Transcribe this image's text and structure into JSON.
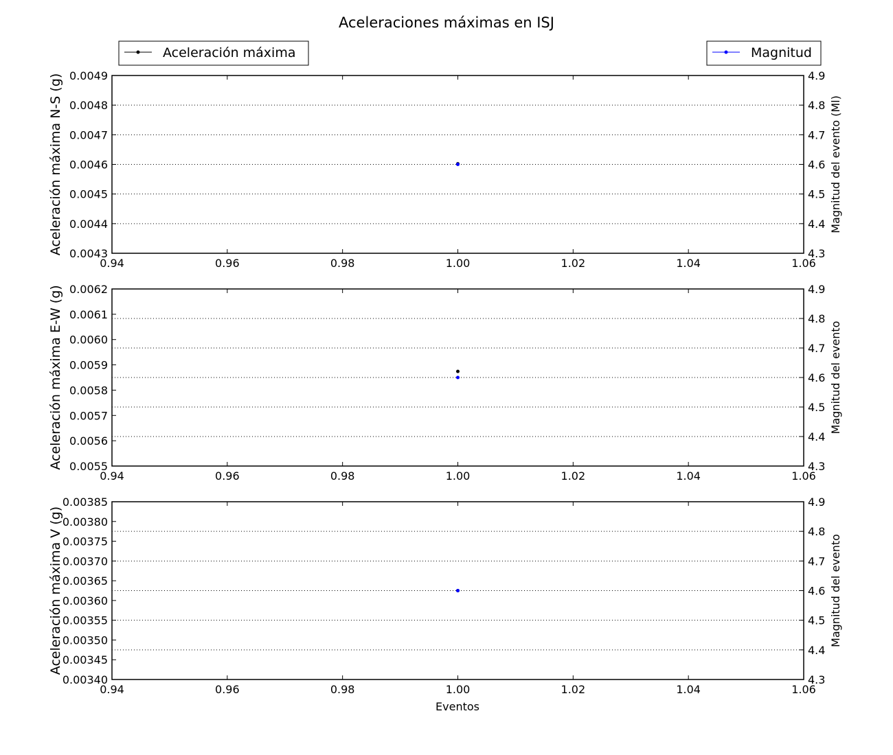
{
  "figure": {
    "title": "Aceleraciones máximas en ISJ",
    "xlabel": "Eventos"
  },
  "legend": {
    "left": {
      "label": "Aceleración máxima",
      "color": "#000000"
    },
    "right": {
      "label": "Magnitud",
      "color": "#0000ff"
    }
  },
  "colors": {
    "acceleration": "#000000",
    "magnitude": "#0000ff",
    "grid": "#000000"
  },
  "chart_data": [
    {
      "type": "scatter",
      "x": [
        1.0
      ],
      "xlim": [
        0.94,
        1.06
      ],
      "xticks": [
        "0.94",
        "0.96",
        "0.98",
        "1.00",
        "1.02",
        "1.04",
        "1.06"
      ],
      "xlabel": "",
      "ylabel": "Aceleración máxima N-S (g)",
      "ylim": [
        0.0043,
        0.0049
      ],
      "yticks": [
        "0.0043",
        "0.0044",
        "0.0045",
        "0.0046",
        "0.0047",
        "0.0048",
        "0.0049"
      ],
      "y2label": "Magnitud del evento (Ml)",
      "y2lim": [
        4.3,
        4.9
      ],
      "y2ticks": [
        "4.3",
        "4.4",
        "4.5",
        "4.6",
        "4.7",
        "4.8",
        "4.9"
      ],
      "grid": "y2 dotted",
      "series": [
        {
          "name": "Aceleración máxima",
          "axis": "left",
          "values": [
            0.004602
          ]
        },
        {
          "name": "Magnitud",
          "axis": "right",
          "values": [
            4.6
          ]
        }
      ]
    },
    {
      "type": "scatter",
      "x": [
        1.0
      ],
      "xlim": [
        0.94,
        1.06
      ],
      "xticks": [
        "0.94",
        "0.96",
        "0.98",
        "1.00",
        "1.02",
        "1.04",
        "1.06"
      ],
      "xlabel": "",
      "ylabel": "Aceleración máxima E-W (g)",
      "ylim": [
        0.0055,
        0.0062
      ],
      "yticks": [
        "0.0055",
        "0.0056",
        "0.0057",
        "0.0058",
        "0.0059",
        "0.0060",
        "0.0061",
        "0.0062"
      ],
      "y2label": "Magnitud del evento",
      "y2lim": [
        4.3,
        4.9
      ],
      "y2ticks": [
        "4.3",
        "4.4",
        "4.5",
        "4.6",
        "4.7",
        "4.8",
        "4.9"
      ],
      "grid": "y2 dotted",
      "series": [
        {
          "name": "Aceleración máxima",
          "axis": "left",
          "values": [
            0.005874
          ]
        },
        {
          "name": "Magnitud",
          "axis": "right",
          "values": [
            4.6
          ]
        }
      ]
    },
    {
      "type": "scatter",
      "x": [
        1.0
      ],
      "xlim": [
        0.94,
        1.06
      ],
      "xticks": [
        "0.94",
        "0.96",
        "0.98",
        "1.00",
        "1.02",
        "1.04",
        "1.06"
      ],
      "xlabel": "Eventos",
      "ylabel": "Aceleración máxima V (g)",
      "ylim": [
        0.0034,
        0.00385
      ],
      "yticks": [
        "0.00340",
        "0.00345",
        "0.00350",
        "0.00355",
        "0.00360",
        "0.00365",
        "0.00370",
        "0.00375",
        "0.00380",
        "0.00385"
      ],
      "y2label": "Magnitud del evento",
      "y2lim": [
        4.3,
        4.9
      ],
      "y2ticks": [
        "4.3",
        "4.4",
        "4.5",
        "4.6",
        "4.7",
        "4.8",
        "4.9"
      ],
      "grid": "y2 dotted",
      "series": [
        {
          "name": "Aceleración máxima",
          "axis": "left",
          "values": [
            0.003625
          ]
        },
        {
          "name": "Magnitud",
          "axis": "right",
          "values": [
            4.6
          ]
        }
      ]
    }
  ]
}
